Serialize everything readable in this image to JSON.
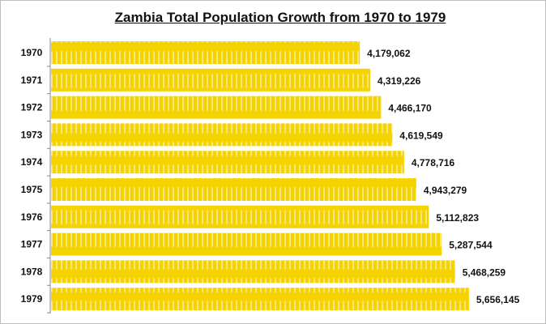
{
  "chart_data": {
    "type": "bar",
    "orientation": "horizontal",
    "title": "Zambia Total Population Growth from 1970 to 1979",
    "categories": [
      "1970",
      "1971",
      "1972",
      "1973",
      "1974",
      "1975",
      "1976",
      "1977",
      "1978",
      "1979"
    ],
    "values": [
      4179062,
      4319226,
      4466170,
      4619549,
      4778716,
      4943279,
      5112823,
      5287544,
      5468259,
      5656145
    ],
    "data_labels": [
      "4,179,062",
      "4,319,226",
      "4,466,170",
      "4,619,549",
      "4,778,716",
      "4,943,279",
      "5,112,823",
      "5,287,544",
      "5,468,259",
      "5,656,145"
    ],
    "xlim": [
      0,
      6140000
    ],
    "grid": false,
    "bar_color": "#F5D300",
    "stripe_color": "#FBE77A"
  }
}
